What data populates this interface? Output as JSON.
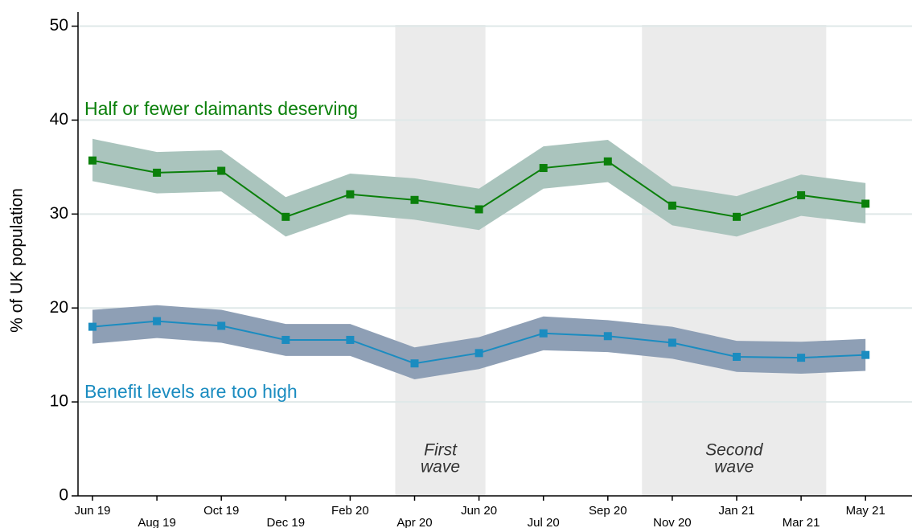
{
  "chart_data": {
    "type": "line",
    "ylabel": "% of UK population",
    "categories": [
      "Jun 19",
      "Aug 19",
      "Oct 19",
      "Dec 19",
      "Feb 20",
      "Apr 20",
      "Jun 20",
      "Jul 20",
      "Sep 20",
      "Nov 20",
      "Jan 21",
      "Mar 21",
      "May 21"
    ],
    "series": [
      {
        "name": "Half or fewer claimants deserving",
        "color": "#0b800b",
        "band_color": "#aac4bd",
        "values": [
          35.7,
          34.4,
          34.6,
          29.7,
          32.1,
          31.5,
          30.5,
          34.9,
          35.6,
          30.9,
          29.7,
          32.0,
          31.1
        ],
        "upper": [
          38.0,
          36.6,
          36.8,
          31.8,
          34.3,
          33.8,
          32.7,
          37.2,
          37.9,
          33.0,
          31.9,
          34.2,
          33.3
        ],
        "lower": [
          33.5,
          32.2,
          32.4,
          27.6,
          30.0,
          29.4,
          28.3,
          32.7,
          33.4,
          28.8,
          27.6,
          29.8,
          29.0
        ]
      },
      {
        "name": "Benefit levels are too high",
        "color": "#1b8cc0",
        "band_color": "#8e9fb5",
        "values": [
          18.0,
          18.6,
          18.1,
          16.6,
          16.6,
          14.1,
          15.2,
          17.3,
          17.0,
          16.3,
          14.8,
          14.7,
          15.0
        ],
        "upper": [
          19.8,
          20.3,
          19.8,
          18.3,
          18.3,
          15.8,
          16.9,
          19.1,
          18.7,
          18.0,
          16.5,
          16.4,
          16.7
        ],
        "lower": [
          16.2,
          16.8,
          16.3,
          14.9,
          14.9,
          12.4,
          13.5,
          15.5,
          15.3,
          14.6,
          13.2,
          13.0,
          13.3
        ]
      }
    ],
    "shaded_periods": [
      {
        "label_lines": [
          "First",
          "wave"
        ],
        "x_range": [
          4.7,
          6.1
        ]
      },
      {
        "label_lines": [
          "Second",
          "wave"
        ],
        "x_range": [
          8.53,
          11.39
        ]
      }
    ],
    "ylim": [
      0,
      51.5
    ],
    "yticks": [
      0,
      10,
      20,
      30,
      40,
      50
    ],
    "grid": true
  }
}
